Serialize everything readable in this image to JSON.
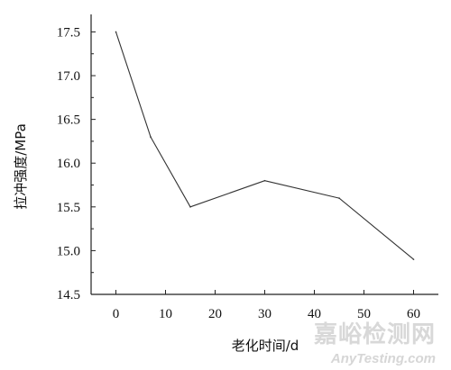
{
  "chart_data": {
    "type": "line",
    "title": "",
    "xlabel": "老化时间/d",
    "ylabel": "拉冲强度/MPa",
    "x": [
      0,
      7,
      15,
      30,
      45,
      60
    ],
    "series": [
      {
        "values": [
          17.5,
          16.3,
          15.5,
          15.8,
          15.6,
          14.9
        ]
      }
    ],
    "xlim": [
      -5,
      65
    ],
    "ylim": [
      14.5,
      17.7
    ],
    "x_ticks": [
      "0",
      "10",
      "20",
      "30",
      "40",
      "50",
      "60"
    ],
    "y_ticks": [
      "14.5",
      "15.0",
      "15.5",
      "16.0",
      "16.5",
      "17.0",
      "17.5"
    ],
    "grid": false,
    "line_color": "#333333",
    "axis_color": "#222222"
  },
  "watermark": {
    "text_zh": "嘉峪检测网",
    "text_en": "AnyTesting.com"
  }
}
